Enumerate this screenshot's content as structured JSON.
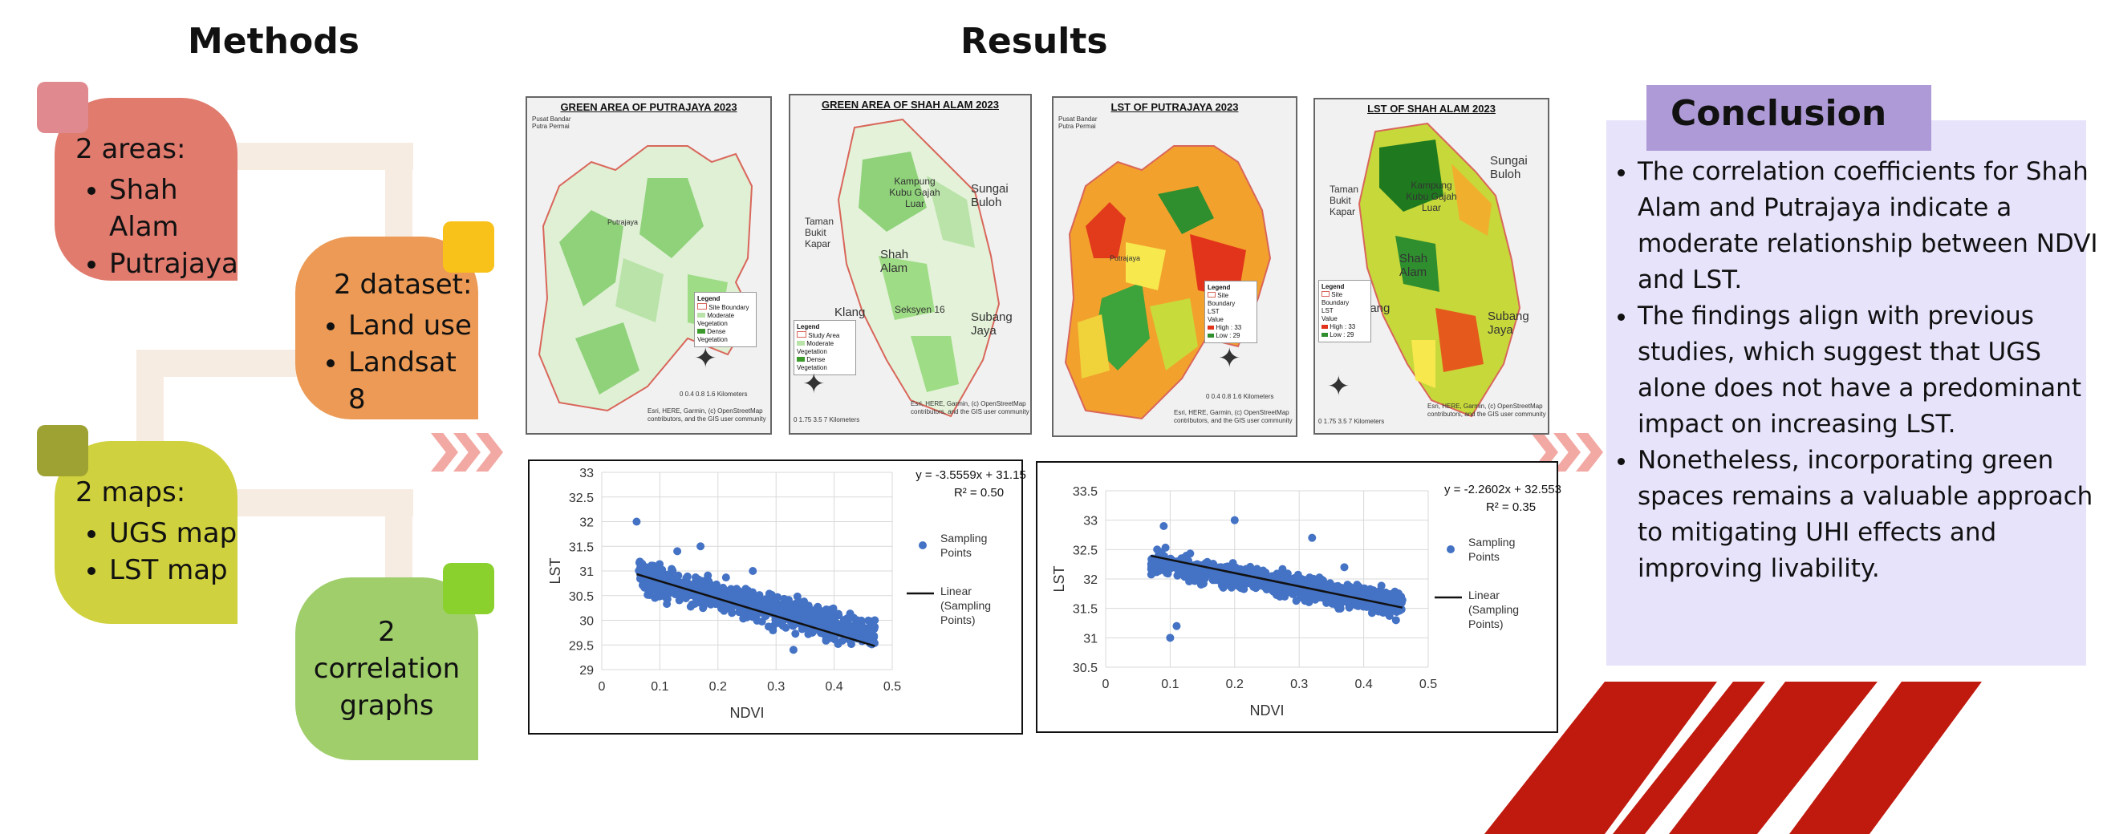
{
  "methods": {
    "title": "Methods",
    "areas": {
      "title": "2 areas:",
      "items": [
        "Shah Alam",
        "Putrajaya"
      ]
    },
    "dataset": {
      "title": "2 dataset:",
      "items": [
        "Land use",
        "Landsat 8"
      ]
    },
    "maps": {
      "title": "2 maps:",
      "items": [
        "UGS map",
        "LST map"
      ]
    },
    "graphs": {
      "title": "2 correlation graphs"
    }
  },
  "results": {
    "title": "Results",
    "maps": [
      {
        "title": "GREEN AREA OF PUTRAJAYA 2023",
        "place_labels": [
          "Pusat Bandar Putra Permai",
          "Putrajaya"
        ],
        "legend_title": "Legend",
        "legend_items": [
          "Site Boundary",
          "Moderate Vegetation",
          "Dense Vegetation"
        ],
        "scale": "0 0.4 0.8     1.6",
        "scale_unit": "Kilometers",
        "credit": "Esri, HERE, Garmin, (c) OpenStreetMap contributors, and the GIS user community"
      },
      {
        "title": "GREEN AREA OF SHAH ALAM 2023",
        "place_labels": [
          "Kampung Kubu Gajah Luar",
          "Sungai Buloh",
          "Taman Bukit Kapar",
          "Shah Alam",
          "Klang",
          "Seksyen 16",
          "Subang Jaya"
        ],
        "legend_title": "Legend",
        "legend_items": [
          "Study Area",
          "Moderate Vegetation",
          "Dense Vegetation"
        ],
        "scale": "0  1.75  3.5       7",
        "scale_unit": "Kilometers",
        "credit": "Esri, HERE, Garmin, (c) OpenStreetMap contributors, and the GIS user community"
      },
      {
        "title": "LST OF PUTRAJAYA 2023",
        "place_labels": [
          "Pusat Bandar Putra Permai",
          "Putrajaya"
        ],
        "legend_title": "Legend",
        "legend_items": [
          "Site Boundary",
          "LST",
          "Value",
          "High : 33",
          "Low : 29"
        ],
        "scale": "0 0.4 0.8     1.6",
        "scale_unit": "Kilometers",
        "credit": "Esri, HERE, Garmin, (c) OpenStreetMap contributors, and the GIS user community"
      },
      {
        "title": "LST OF SHAH ALAM 2023",
        "place_labels": [
          "Kampung Kubu Gajah Luar",
          "Sungai Buloh",
          "Taman Bukit Kapar",
          "Shah Alam",
          "Klang",
          "Subang Jaya"
        ],
        "legend_title": "Legend",
        "legend_items": [
          "Site Boundary",
          "LST",
          "Value",
          "High : 33",
          "Low : 29"
        ],
        "scale": "0  1.75  3.5       7",
        "scale_unit": "Kilometers",
        "credit": "Esri, HERE, Garmin, (c) OpenStreetMap contributors, and the GIS user community"
      }
    ]
  },
  "conclusion": {
    "title": "Conclusion",
    "points": [
      "The correlation coefficients for Shah Alam and Putrajaya indicate a moderate relationship between NDVI and LST.",
      "The findings align with previous studies, which suggest that UGS alone does not have a predominant impact on increasing LST.",
      " Nonetheless, incorporating green spaces remains a valuable approach to mitigating UHI effects and improving livability."
    ]
  },
  "colors": {
    "areas": "#e07b6e",
    "areas_sq": "#e08a8f",
    "dataset": "#ec9a55",
    "dataset_sq": "#f9c21a",
    "maps": "#d0d13e",
    "maps_sq": "#9ea233",
    "graphs": "#9fce6b",
    "graphs_sq": "#8bd12d",
    "chevron": "#f2a9a4",
    "conclusion_bg": "#e6e3fb",
    "conclusion_title_bg": "#ae9ad6",
    "stripes": "#c0190e",
    "points": "#4472c4"
  },
  "chart_data": [
    {
      "type": "scatter",
      "xlabel": "NDVI",
      "ylabel": "LST",
      "xlim": [
        0,
        0.5
      ],
      "ylim": [
        29,
        33
      ],
      "xticks": [
        0,
        0.1,
        0.2,
        0.3,
        0.4,
        0.5
      ],
      "yticks": [
        29,
        29.5,
        30,
        30.5,
        31,
        31.5,
        32,
        32.5,
        33
      ],
      "equation": "y = -3.5559x + 31.15",
      "r2": "R² = 0.50",
      "trend": {
        "slope": -3.5559,
        "intercept": 31.15,
        "x_range": [
          0.06,
          0.47
        ]
      },
      "legend": {
        "points": "Sampling Points",
        "line": "Linear (Sampling Points)"
      },
      "point_cloud": {
        "x_range": [
          0.06,
          0.47
        ],
        "y_center_at_min_x": 30.9,
        "y_center_at_max_x": 29.7,
        "spread": 0.45
      },
      "outliers": [
        [
          0.06,
          32.0
        ],
        [
          0.13,
          31.4
        ],
        [
          0.17,
          31.5
        ],
        [
          0.26,
          31.0
        ],
        [
          0.44,
          30.0
        ],
        [
          0.47,
          30.0
        ],
        [
          0.33,
          29.4
        ],
        [
          0.45,
          29.6
        ]
      ]
    },
    {
      "type": "scatter",
      "xlabel": "NDVI",
      "ylabel": "LST",
      "xlim": [
        0,
        0.5
      ],
      "ylim": [
        30.5,
        33.5
      ],
      "xticks": [
        0,
        0.1,
        0.2,
        0.3,
        0.4,
        0.5
      ],
      "yticks": [
        30.5,
        31,
        31.5,
        32,
        32.5,
        33,
        33.5
      ],
      "equation": "y = -2.2602x + 32.553",
      "r2": "R² = 0.35",
      "trend": {
        "slope": -2.2602,
        "intercept": 32.553,
        "x_range": [
          0.07,
          0.46
        ]
      },
      "legend": {
        "points": "Sampling Points",
        "line": "Linear (Sampling Points)"
      },
      "point_cloud": {
        "x_range": [
          0.07,
          0.46
        ],
        "y_center_at_min_x": 32.3,
        "y_center_at_max_x": 31.55,
        "spread": 0.3
      },
      "outliers": [
        [
          0.1,
          31.0
        ],
        [
          0.11,
          31.2
        ],
        [
          0.09,
          32.9
        ],
        [
          0.2,
          33.0
        ],
        [
          0.32,
          32.7
        ],
        [
          0.37,
          32.2
        ],
        [
          0.45,
          31.3
        ]
      ]
    }
  ]
}
